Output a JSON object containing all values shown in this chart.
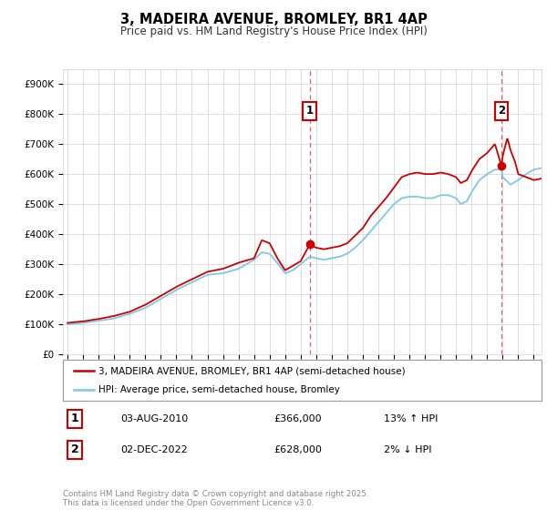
{
  "title": "3, MADEIRA AVENUE, BROMLEY, BR1 4AP",
  "subtitle": "Price paid vs. HM Land Registry's House Price Index (HPI)",
  "ylabel_ticks": [
    "£0",
    "£100K",
    "£200K",
    "£300K",
    "£400K",
    "£500K",
    "£600K",
    "£700K",
    "£800K",
    "£900K"
  ],
  "ytick_values": [
    0,
    100000,
    200000,
    300000,
    400000,
    500000,
    600000,
    700000,
    800000,
    900000
  ],
  "ylim": [
    0,
    950000
  ],
  "xlim_start": 1994.7,
  "xlim_end": 2025.5,
  "xticks": [
    1995,
    1996,
    1997,
    1998,
    1999,
    2000,
    2001,
    2002,
    2003,
    2004,
    2005,
    2006,
    2007,
    2008,
    2009,
    2010,
    2011,
    2012,
    2013,
    2014,
    2015,
    2016,
    2017,
    2018,
    2019,
    2020,
    2021,
    2022,
    2023,
    2024,
    2025
  ],
  "hpi_color": "#7ec8e3",
  "price_color": "#cc0000",
  "vline_color": "#dd4444",
  "marker1_x": 2010.58,
  "marker1_y": 366000,
  "marker2_x": 2022.92,
  "marker2_y": 628000,
  "legend_line1": "3, MADEIRA AVENUE, BROMLEY, BR1 4AP (semi-detached house)",
  "legend_line2": "HPI: Average price, semi-detached house, Bromley",
  "ann1_label": "1",
  "ann1_date": "03-AUG-2010",
  "ann1_price": "£366,000",
  "ann1_hpi": "13% ↑ HPI",
  "ann2_label": "2",
  "ann2_date": "02-DEC-2022",
  "ann2_price": "£628,000",
  "ann2_hpi": "2% ↓ HPI",
  "footer": "Contains HM Land Registry data © Crown copyright and database right 2025.\nThis data is licensed under the Open Government Licence v3.0.",
  "bg": "#ffffff",
  "grid_color": "#d0d0d0"
}
